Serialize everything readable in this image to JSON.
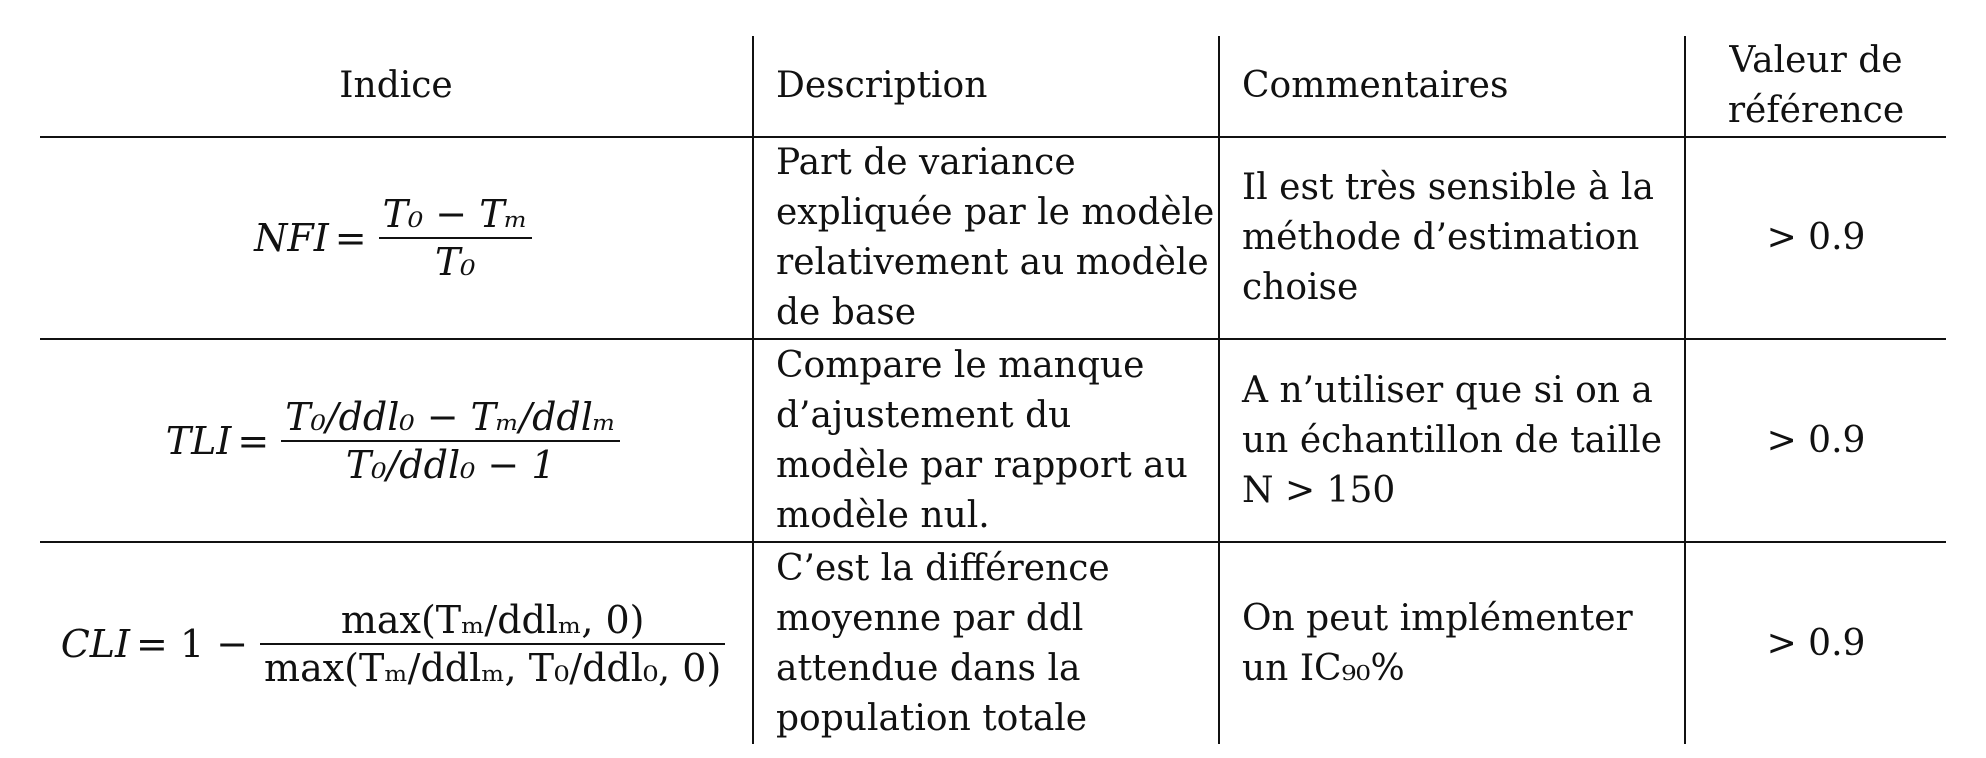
{
  "headers": {
    "indice": "Indice",
    "description": "Description",
    "commentaires": "Commentaires",
    "valeur": "Valeur de\nréférence"
  },
  "rows": [
    {
      "formula": {
        "lhs": "NFI",
        "eq": "=",
        "num": "T₀ − Tₘ",
        "den": "T₀"
      },
      "description": "Part de variance\nexpliquée par le modèle\nrelativement au modèle\nde base",
      "commentaire": "Il est très sensible à la\nméthode d’estimation\nchoise",
      "valeur": "> 0.9"
    },
    {
      "formula": {
        "lhs": "TLI",
        "eq": "=",
        "num": "T₀/ddl₀ − Tₘ/ddlₘ",
        "den": "T₀/ddl₀ − 1"
      },
      "description": "Compare le manque\nd’ajustement du\nmodèle par rapport au\nmodèle nul.",
      "commentaire": "A n’utiliser que si on a\nun échantillon de taille\nN > 150",
      "valeur": "> 0.9"
    },
    {
      "formula": {
        "lhs": "CLI",
        "eq": "= 1 −",
        "num": "max(Tₘ/ddlₘ, 0)",
        "den": "max(Tₘ/ddlₘ, T₀/ddl₀, 0)"
      },
      "description": "C’est la différence\nmoyenne par ddl\nattendue dans la\npopulation totale",
      "commentaire": "On peut implémenter\nun IC₉₀%",
      "valeur": "> 0.9"
    }
  ]
}
